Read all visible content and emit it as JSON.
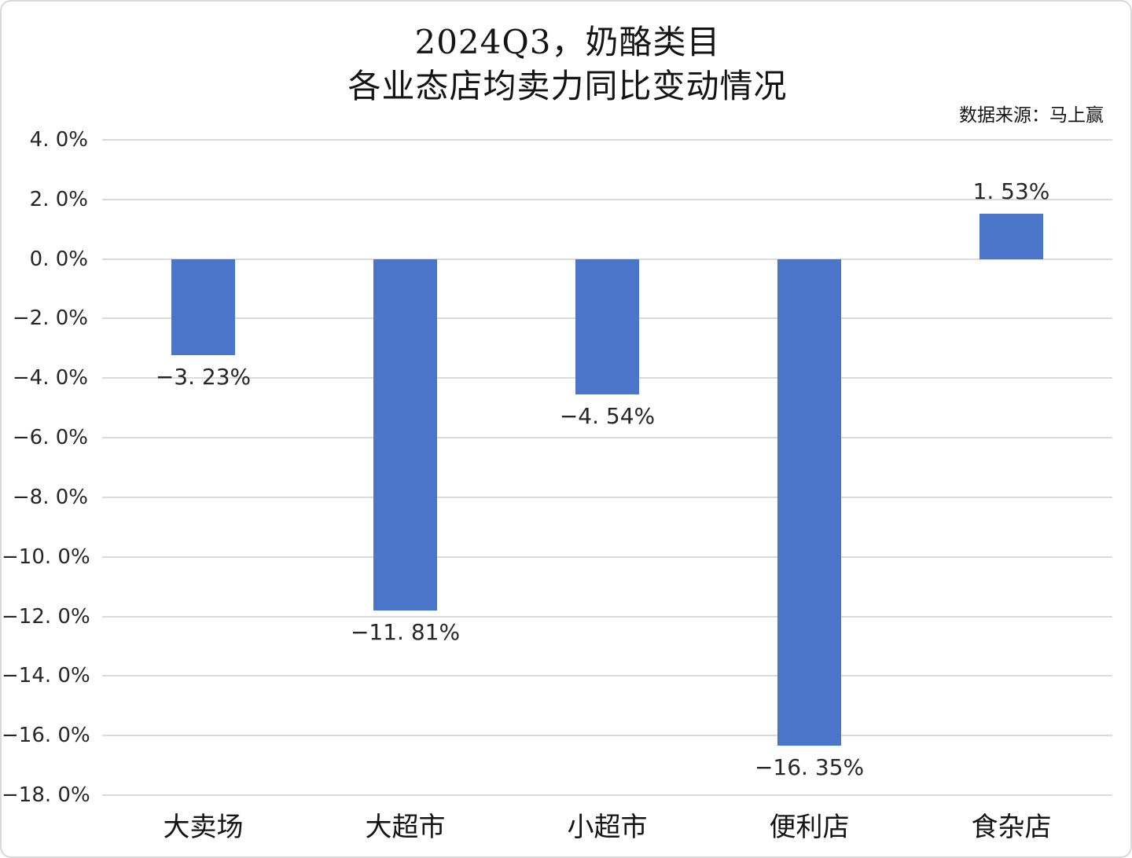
{
  "title": {
    "line1": "2024Q3，奶酪类目",
    "line2": "各业态店均卖力同比变动情况"
  },
  "source": "数据来源：马上赢",
  "chart_data": {
    "type": "bar",
    "title": "2024Q3，奶酪类目 各业态店均卖力同比变动情况",
    "source": "数据来源：马上赢",
    "categories": [
      "大卖场",
      "大超市",
      "小超市",
      "便利店",
      "食杂店"
    ],
    "values": [
      -3.23,
      -11.81,
      -4.54,
      -16.35,
      1.53
    ],
    "data_labels": [
      "−3. 23%",
      "−11. 81%",
      "−4. 54%",
      "−16. 35%",
      "1. 53%"
    ],
    "xlabel": "",
    "ylabel": "",
    "ylim": [
      -18,
      4
    ],
    "ytick_step": 2,
    "ytick_labels": [
      "4. 0%",
      "2. 0%",
      "0. 0%",
      "−2. 0%",
      "−4. 0%",
      "−6. 0%",
      "−8. 0%",
      "−10. 0%",
      "−12. 0%",
      "−14. 0%",
      "−16. 0%",
      "−18. 0%"
    ],
    "grid": true,
    "legend": "none",
    "colors": {
      "bar": "#4A75C9",
      "gridline": "#DBDBDB",
      "text": "#262626"
    }
  }
}
